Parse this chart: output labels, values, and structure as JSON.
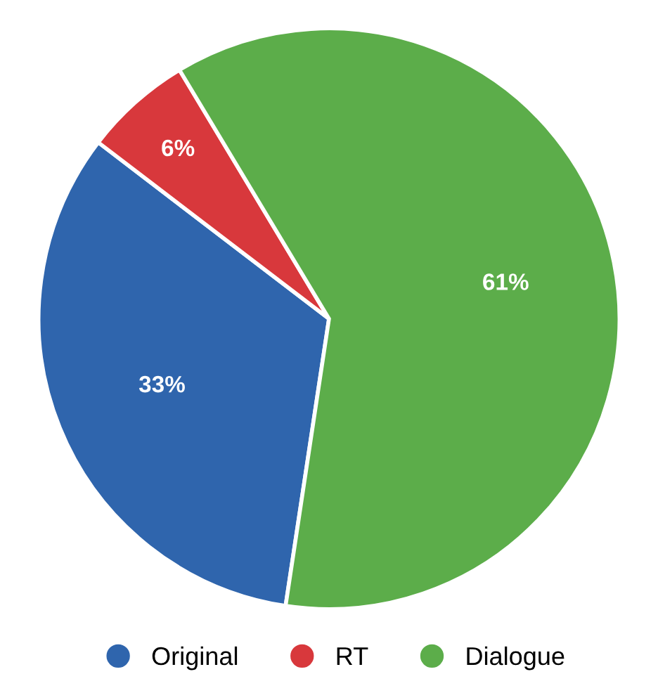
{
  "chart_data": {
    "type": "pie",
    "categories": [
      "Original",
      "RT",
      "Dialogue"
    ],
    "values": [
      33,
      6,
      61
    ],
    "colors": [
      "#2f65ad",
      "#d8383c",
      "#5cad4a"
    ],
    "value_labels": [
      "33%",
      "6%",
      "61%"
    ],
    "legend": "bottom"
  }
}
